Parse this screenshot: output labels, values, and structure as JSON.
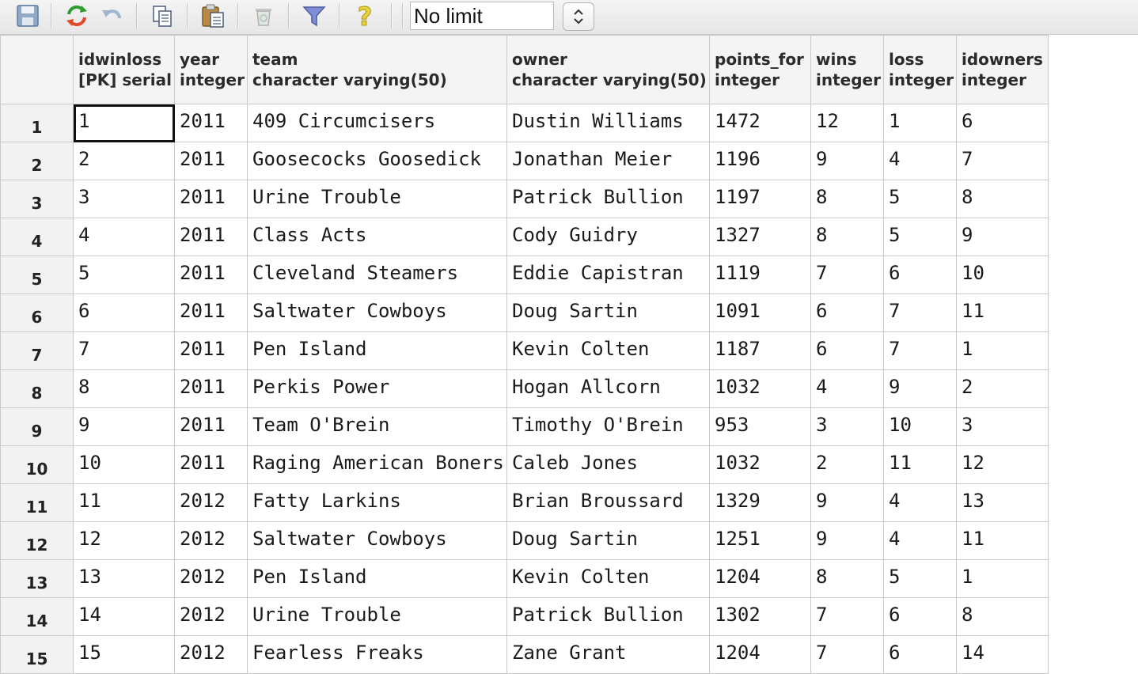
{
  "toolbar": {
    "limit": "No limit"
  },
  "columns": [
    {
      "name": "idwinloss",
      "type": "[PK] serial"
    },
    {
      "name": "year",
      "type": "integer"
    },
    {
      "name": "team",
      "type": "character varying(50)"
    },
    {
      "name": "owner",
      "type": "character varying(50)"
    },
    {
      "name": "points_for",
      "type": "integer"
    },
    {
      "name": "wins",
      "type": "integer"
    },
    {
      "name": "loss",
      "type": "integer"
    },
    {
      "name": "idowners",
      "type": "integer"
    }
  ],
  "rows": [
    {
      "num": "1",
      "cells": [
        "1",
        "2011",
        "409 Circumcisers",
        "Dustin Williams",
        "1472",
        "12",
        "1",
        "6"
      ]
    },
    {
      "num": "2",
      "cells": [
        "2",
        "2011",
        "Goosecocks Goosedick",
        "Jonathan Meier",
        "1196",
        "9",
        "4",
        "7"
      ]
    },
    {
      "num": "3",
      "cells": [
        "3",
        "2011",
        "Urine Trouble",
        "Patrick Bullion",
        "1197",
        "8",
        "5",
        "8"
      ]
    },
    {
      "num": "4",
      "cells": [
        "4",
        "2011",
        "Class Acts",
        "Cody Guidry",
        "1327",
        "8",
        "5",
        "9"
      ]
    },
    {
      "num": "5",
      "cells": [
        "5",
        "2011",
        "Cleveland Steamers",
        "Eddie Capistran",
        "1119",
        "7",
        "6",
        "10"
      ]
    },
    {
      "num": "6",
      "cells": [
        "6",
        "2011",
        "Saltwater Cowboys",
        "Doug Sartin",
        "1091",
        "6",
        "7",
        "11"
      ]
    },
    {
      "num": "7",
      "cells": [
        "7",
        "2011",
        "Pen Island",
        "Kevin Colten",
        "1187",
        "6",
        "7",
        "1"
      ]
    },
    {
      "num": "8",
      "cells": [
        "8",
        "2011",
        "Perkis Power",
        "Hogan Allcorn",
        "1032",
        "4",
        "9",
        "2"
      ]
    },
    {
      "num": "9",
      "cells": [
        "9",
        "2011",
        "Team O'Brein",
        "Timothy O'Brein",
        "953",
        "3",
        "10",
        "3"
      ]
    },
    {
      "num": "10",
      "cells": [
        "10",
        "2011",
        "Raging American Boners",
        "Caleb Jones",
        "1032",
        "2",
        "11",
        "12"
      ]
    },
    {
      "num": "11",
      "cells": [
        "11",
        "2012",
        "Fatty Larkins",
        "Brian Broussard",
        "1329",
        "9",
        "4",
        "13"
      ]
    },
    {
      "num": "12",
      "cells": [
        "12",
        "2012",
        "Saltwater Cowboys",
        "Doug Sartin",
        "1251",
        "9",
        "4",
        "11"
      ]
    },
    {
      "num": "13",
      "cells": [
        "13",
        "2012",
        "Pen Island",
        "Kevin Colten",
        "1204",
        "8",
        "5",
        "1"
      ]
    },
    {
      "num": "14",
      "cells": [
        "14",
        "2012",
        "Urine Trouble",
        "Patrick Bullion",
        "1302",
        "7",
        "6",
        "8"
      ]
    },
    {
      "num": "15",
      "cells": [
        "15",
        "2012",
        "Fearless Freaks",
        "Zane Grant",
        "1204",
        "7",
        "6",
        "14"
      ]
    }
  ],
  "selected": {
    "row": 0,
    "col": 0
  }
}
